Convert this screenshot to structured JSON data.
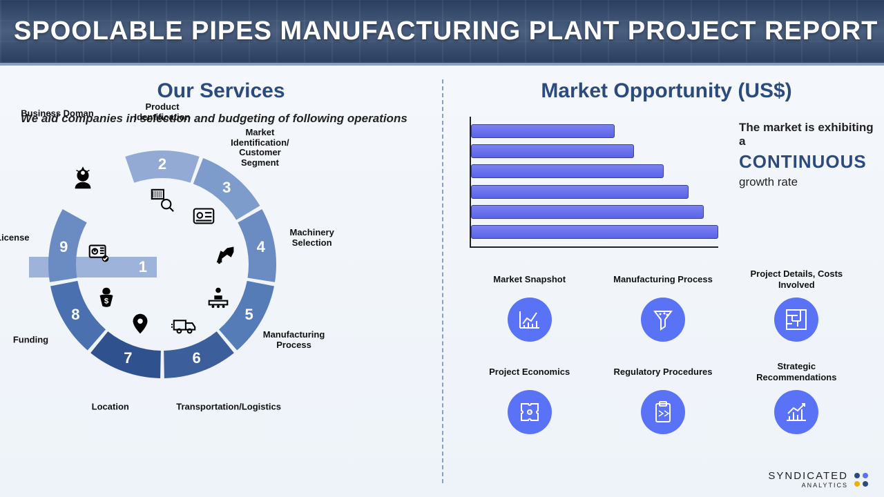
{
  "header": {
    "title": "SPOOLABLE PIPES MANUFACTURING PLANT PROJECT REPORT"
  },
  "services": {
    "heading": "Our Services",
    "subtitle": "We aid companies in selection and budgeting of following operations",
    "ring": {
      "segments": [
        {
          "num": "1",
          "label": "Business Doman",
          "color": "#9db3d9"
        },
        {
          "num": "2",
          "label": "Product Identification",
          "color": "#93abd4"
        },
        {
          "num": "3",
          "label": "Market Identification/ Customer Segment",
          "color": "#7e9ccb"
        },
        {
          "num": "4",
          "label": "Machinery Selection",
          "color": "#6a8cc2"
        },
        {
          "num": "5",
          "label": "Manufacturing Process",
          "color": "#567cb8"
        },
        {
          "num": "6",
          "label": "Transportation/Logistics",
          "color": "#3c5f9c"
        },
        {
          "num": "7",
          "label": "Location",
          "color": "#2f528f"
        },
        {
          "num": "8",
          "label": "Funding",
          "color": "#4a70af"
        },
        {
          "num": "9",
          "label": "License",
          "color": "#6a8cc2"
        }
      ],
      "outer_radius": 165,
      "inner_radius": 125,
      "gap_deg": 2
    }
  },
  "market": {
    "heading": "Market Opportunity (US$)",
    "chart": {
      "type": "bar",
      "orientation": "horizontal",
      "bar_color": "#6a72f0",
      "bar_border": "#3a3f8f",
      "values_pct": [
        58,
        66,
        78,
        88,
        94,
        100
      ],
      "axis_color": "#222"
    },
    "growth_text": {
      "line1": "The market is exhibiting a",
      "big": "CONTINUOUS",
      "line2": "growth rate",
      "big_color": "#2c4b7c"
    },
    "features": [
      {
        "label": "Market Snapshot",
        "icon": "chart-line"
      },
      {
        "label": "Manufacturing Process",
        "icon": "funnel"
      },
      {
        "label": "Project Details, Costs Involved",
        "icon": "maze"
      },
      {
        "label": "Project Economics",
        "icon": "puzzle"
      },
      {
        "label": "Regulatory Procedures",
        "icon": "clipboard"
      },
      {
        "label": "Strategic Recommendations",
        "icon": "growth"
      }
    ],
    "feature_circle_color": "#5a72f5"
  },
  "brand": {
    "name": "SYNDICATED",
    "sub": "ANALYTICS"
  },
  "colors": {
    "heading": "#2c4b7c",
    "text": "#111",
    "bg": "#f5f8fc"
  }
}
